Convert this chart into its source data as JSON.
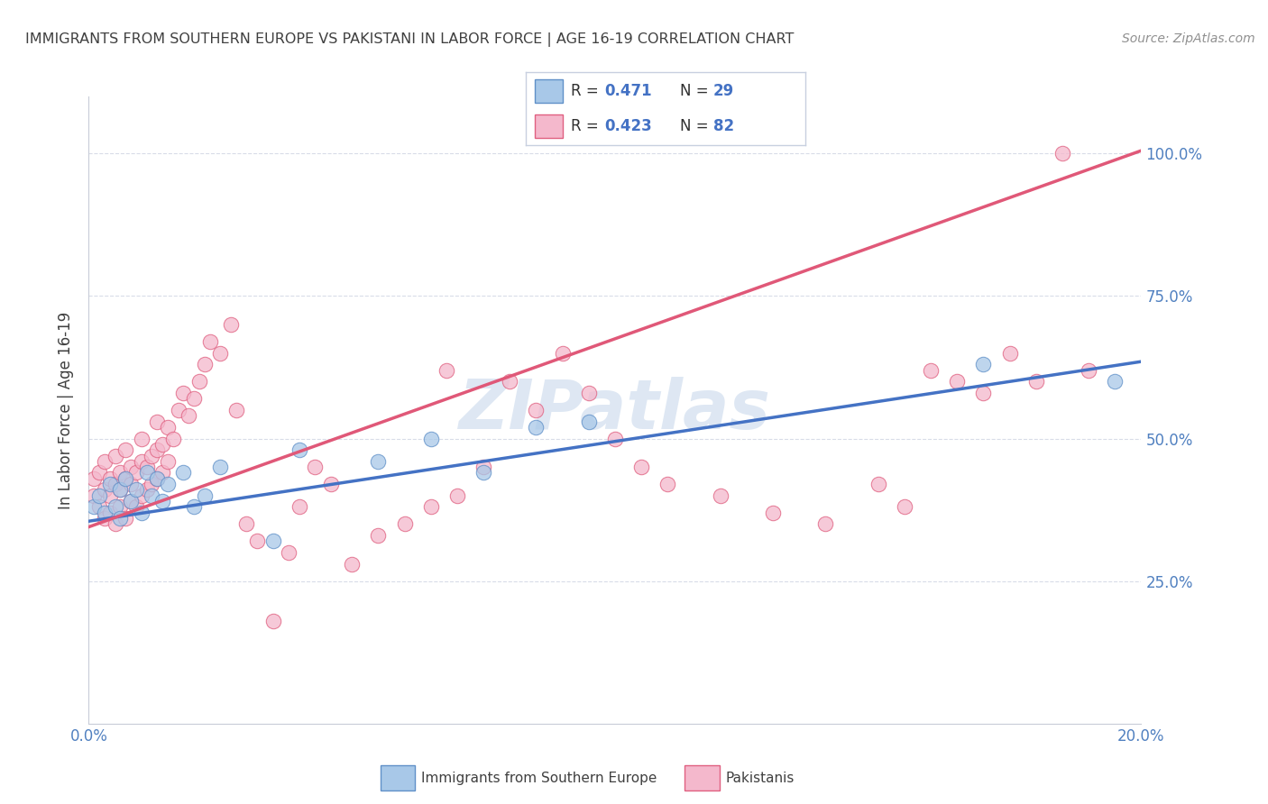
{
  "title": "IMMIGRANTS FROM SOUTHERN EUROPE VS PAKISTANI IN LABOR FORCE | AGE 16-19 CORRELATION CHART",
  "source": "Source: ZipAtlas.com",
  "ylabel": "In Labor Force | Age 16-19",
  "xlim": [
    0.0,
    0.2
  ],
  "ylim": [
    0.0,
    1.1
  ],
  "ytick_vals": [
    0.25,
    0.5,
    0.75,
    1.0
  ],
  "ytick_labels": [
    "25.0%",
    "50.0%",
    "75.0%",
    "100.0%"
  ],
  "xtick_vals": [
    0.0,
    0.05,
    0.1,
    0.15,
    0.2
  ],
  "xtick_labels": [
    "0.0%",
    "",
    "",
    "",
    "20.0%"
  ],
  "blue_R": 0.471,
  "blue_N": 29,
  "pink_R": 0.423,
  "pink_N": 82,
  "blue_color": "#a8c8e8",
  "pink_color": "#f4b8cc",
  "blue_edge_color": "#6090c8",
  "pink_edge_color": "#e06080",
  "blue_line_color": "#4472c4",
  "pink_line_color": "#e05878",
  "title_color": "#404040",
  "source_color": "#909090",
  "axis_label_color": "#5080c0",
  "watermark_color": "#c8d8ec",
  "grid_color": "#d8dce8",
  "legend_border_color": "#c8d0e0",
  "blue_scatter_x": [
    0.001,
    0.002,
    0.003,
    0.004,
    0.005,
    0.006,
    0.006,
    0.007,
    0.008,
    0.009,
    0.01,
    0.011,
    0.012,
    0.013,
    0.014,
    0.015,
    0.018,
    0.02,
    0.022,
    0.025,
    0.035,
    0.04,
    0.055,
    0.065,
    0.075,
    0.085,
    0.095,
    0.17,
    0.195
  ],
  "blue_scatter_y": [
    0.38,
    0.4,
    0.37,
    0.42,
    0.38,
    0.41,
    0.36,
    0.43,
    0.39,
    0.41,
    0.37,
    0.44,
    0.4,
    0.43,
    0.39,
    0.42,
    0.44,
    0.38,
    0.4,
    0.45,
    0.32,
    0.48,
    0.46,
    0.5,
    0.44,
    0.52,
    0.53,
    0.63,
    0.6
  ],
  "pink_scatter_x": [
    0.001,
    0.001,
    0.002,
    0.002,
    0.003,
    0.003,
    0.003,
    0.004,
    0.004,
    0.004,
    0.005,
    0.005,
    0.005,
    0.006,
    0.006,
    0.006,
    0.007,
    0.007,
    0.007,
    0.008,
    0.008,
    0.008,
    0.009,
    0.009,
    0.01,
    0.01,
    0.01,
    0.011,
    0.011,
    0.012,
    0.012,
    0.013,
    0.013,
    0.013,
    0.014,
    0.014,
    0.015,
    0.015,
    0.016,
    0.017,
    0.018,
    0.019,
    0.02,
    0.021,
    0.022,
    0.023,
    0.025,
    0.027,
    0.028,
    0.03,
    0.032,
    0.035,
    0.038,
    0.04,
    0.043,
    0.046,
    0.05,
    0.055,
    0.06,
    0.065,
    0.068,
    0.07,
    0.075,
    0.08,
    0.085,
    0.09,
    0.095,
    0.1,
    0.105,
    0.11,
    0.12,
    0.13,
    0.14,
    0.15,
    0.155,
    0.16,
    0.165,
    0.17,
    0.175,
    0.18,
    0.185,
    0.19
  ],
  "pink_scatter_y": [
    0.4,
    0.43,
    0.38,
    0.44,
    0.36,
    0.41,
    0.46,
    0.37,
    0.43,
    0.4,
    0.35,
    0.42,
    0.47,
    0.38,
    0.44,
    0.41,
    0.36,
    0.43,
    0.48,
    0.39,
    0.45,
    0.42,
    0.38,
    0.44,
    0.4,
    0.46,
    0.5,
    0.41,
    0.45,
    0.42,
    0.47,
    0.43,
    0.48,
    0.53,
    0.44,
    0.49,
    0.52,
    0.46,
    0.5,
    0.55,
    0.58,
    0.54,
    0.57,
    0.6,
    0.63,
    0.67,
    0.65,
    0.7,
    0.55,
    0.35,
    0.32,
    0.18,
    0.3,
    0.38,
    0.45,
    0.42,
    0.28,
    0.33,
    0.35,
    0.38,
    0.62,
    0.4,
    0.45,
    0.6,
    0.55,
    0.65,
    0.58,
    0.5,
    0.45,
    0.42,
    0.4,
    0.37,
    0.35,
    0.42,
    0.38,
    0.62,
    0.6,
    0.58,
    0.65,
    0.6,
    1.0,
    0.62
  ],
  "legend_label_blue": "Immigrants from Southern Europe",
  "legend_label_pink": "Pakistanis"
}
